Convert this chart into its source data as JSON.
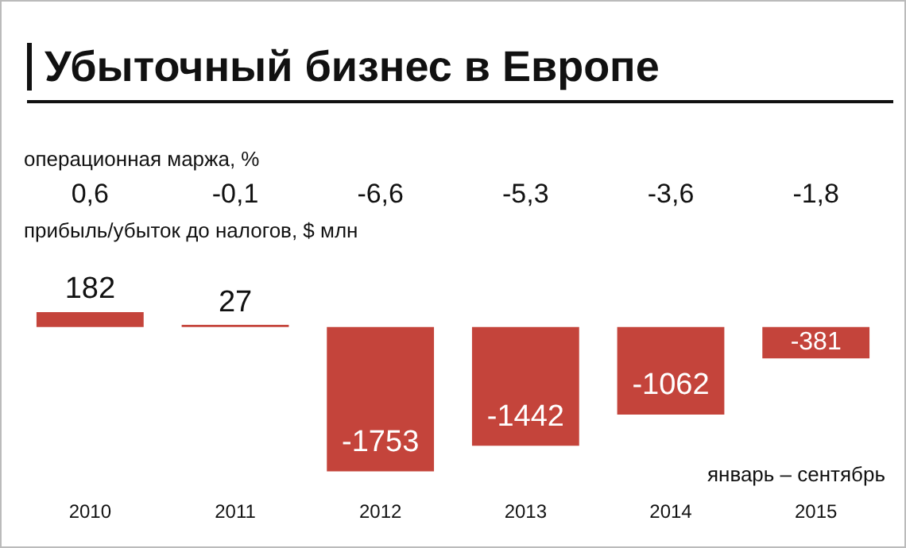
{
  "chart_data": {
    "type": "bar",
    "title": "Убыточный бизнес в Европе",
    "categories": [
      "2010",
      "2011",
      "2012",
      "2013",
      "2014",
      "2015"
    ],
    "series": [
      {
        "color": "#c4443b",
        "values": [
          182,
          27,
          -1753,
          -1442,
          -1062,
          -381
        ]
      }
    ],
    "data_labels": true,
    "grid": false,
    "legend": false,
    "annotations": [
      "операционная маржа, %",
      "0,6",
      "-0,1",
      "-6,6",
      "-5,3",
      "-3,6",
      "-1,8",
      "прибыль/убыток до налогов, $ млн",
      "январь – сентябрь"
    ]
  }
}
